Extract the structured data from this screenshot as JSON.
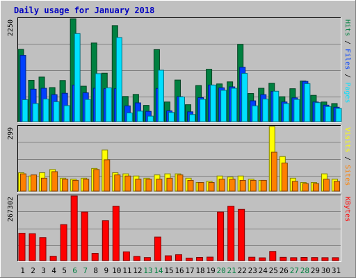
{
  "colors": {
    "hits": "#008040",
    "files": "#0040ff",
    "pages": "#00e0ff",
    "visits": "#ffff00",
    "sites": "#ff8000",
    "kbytes": "#ff0000",
    "title": "#0000c0",
    "weekend_label": "#008040",
    "panel_bg": "#c0c0c0",
    "grid": "#808080"
  },
  "chart_data": {
    "type": "bar",
    "title": "Daily usage for January 2018",
    "categories": [
      "1",
      "2",
      "3",
      "4",
      "5",
      "6",
      "7",
      "8",
      "9",
      "10",
      "11",
      "12",
      "13",
      "14",
      "15",
      "16",
      "17",
      "18",
      "19",
      "20",
      "21",
      "22",
      "23",
      "24",
      "25",
      "26",
      "27",
      "28",
      "29",
      "30",
      "31"
    ],
    "weekend_days": [
      "6",
      "7",
      "13",
      "14",
      "20",
      "21",
      "27",
      "28"
    ],
    "panels": [
      {
        "id": "top",
        "max_label": "2250",
        "ylim": [
          0,
          2250
        ],
        "legend": [
          {
            "text": "Hits",
            "series": "hits"
          },
          {
            "text": " / ",
            "series": null
          },
          {
            "text": "Files",
            "series": "files"
          },
          {
            "text": " / ",
            "series": null
          },
          {
            "text": "Pages",
            "series": "pages"
          }
        ],
        "series": [
          {
            "name": "Hits",
            "key": "hits",
            "values": [
              1580,
              905,
              975,
              745,
              900,
              2250,
              775,
              1720,
              1060,
              2100,
              550,
              595,
              355,
              1575,
              430,
              910,
              370,
              790,
              1145,
              825,
              870,
              1690,
              615,
              730,
              840,
              545,
              720,
              890,
              575,
              430,
              395
            ]
          },
          {
            "name": "Files",
            "key": "files",
            "values": [
              1450,
              710,
              730,
              590,
              620,
              800,
              630,
              730,
              720,
              720,
              345,
              410,
              225,
              725,
              235,
              545,
              215,
              525,
              800,
              740,
              760,
              1190,
              455,
              590,
              660,
              430,
              520,
              880,
              430,
              360,
              315
            ]
          },
          {
            "name": "Pages",
            "key": "pages",
            "values": [
              480,
              395,
              495,
              435,
              350,
              1925,
              485,
              1050,
              740,
              1840,
              190,
              230,
              120,
              1125,
              200,
              540,
              155,
              490,
              800,
              685,
              730,
              1055,
              345,
              495,
              665,
              395,
              485,
              830,
              415,
              330,
              290
            ]
          }
        ]
      },
      {
        "id": "mid",
        "max_label": "299",
        "ylim": [
          0,
          299
        ],
        "legend": [
          {
            "text": "Visits",
            "series": "visits"
          },
          {
            "text": " / ",
            "series": null
          },
          {
            "text": "Sites",
            "series": "sites"
          }
        ],
        "series": [
          {
            "name": "Visits",
            "key": "visits",
            "values": [
              85,
              70,
              85,
              100,
              60,
              55,
              60,
              105,
              190,
              85,
              80,
              70,
              60,
              75,
              80,
              80,
              60,
              40,
              45,
              70,
              65,
              70,
              55,
              50,
              299,
              160,
              60,
              40,
              40,
              80,
              55
            ]
          },
          {
            "name": "Sites",
            "key": "sites",
            "values": [
              80,
              75,
              60,
              90,
              55,
              50,
              55,
              100,
              145,
              75,
              70,
              55,
              55,
              55,
              60,
              75,
              50,
              40,
              40,
              55,
              55,
              50,
              50,
              50,
              180,
              130,
              45,
              35,
              35,
              55,
              45
            ]
          }
        ]
      },
      {
        "id": "bot",
        "max_label": "267302",
        "ylim": [
          0,
          267302
        ],
        "legend": [
          {
            "text": "KBytes",
            "series": "kbytes"
          }
        ],
        "series": [
          {
            "name": "KBytes",
            "key": "kbytes",
            "values": [
              113500,
              111500,
              95500,
              18000,
              149000,
              267302,
              201000,
              30000,
              165000,
              225000,
              36500,
              17500,
              12500,
              97500,
              20000,
              24500,
              10500,
              13000,
              14500,
              201000,
              225000,
              212000,
              14000,
              11500,
              38000,
              13500,
              12000,
              13000,
              12500,
              12000,
              12000
            ]
          }
        ]
      }
    ]
  }
}
